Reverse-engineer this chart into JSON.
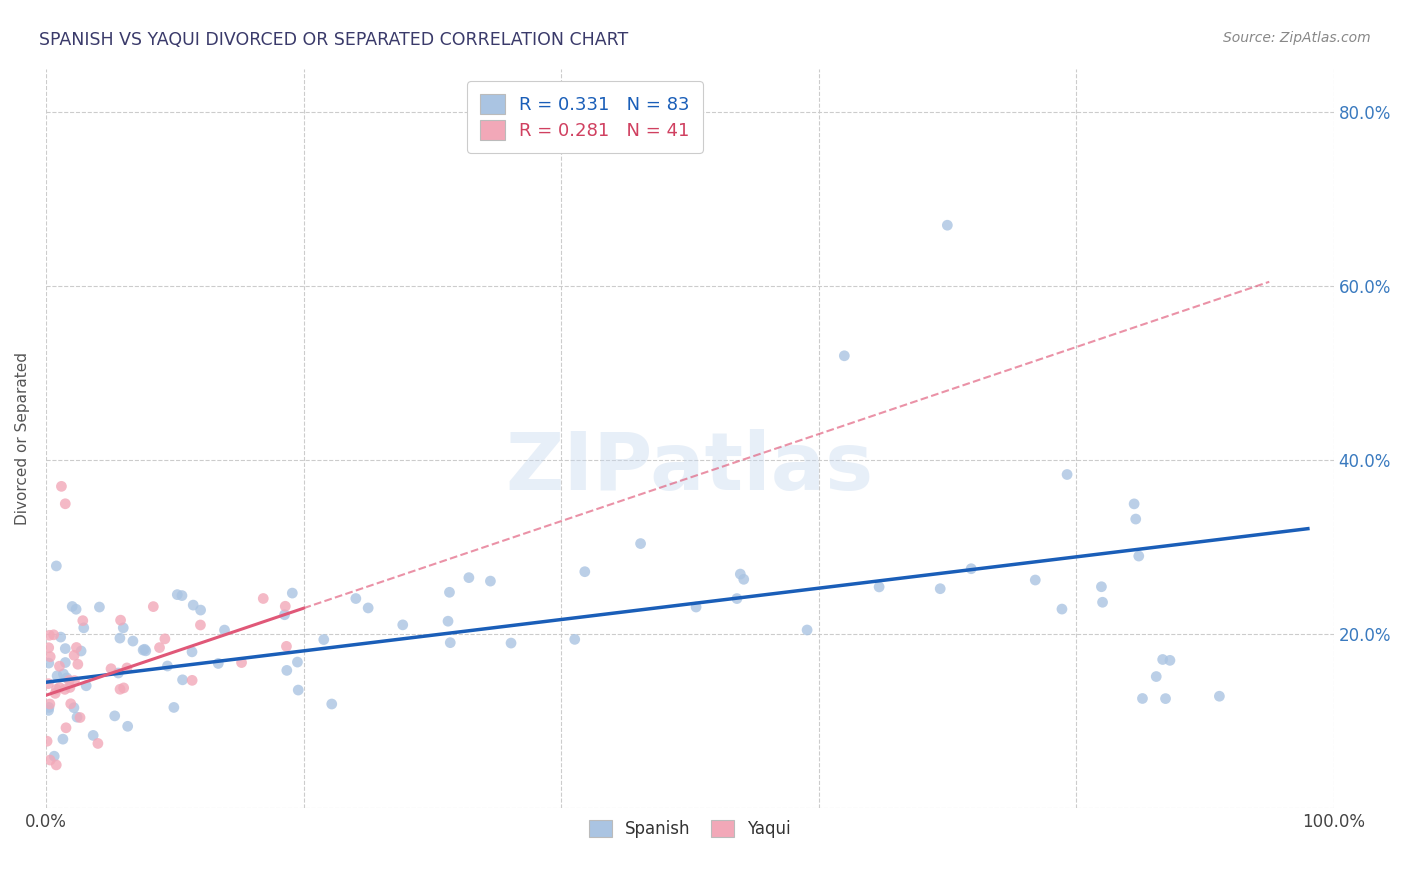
{
  "title": "SPANISH VS YAQUI DIVORCED OR SEPARATED CORRELATION CHART",
  "source_text": "Source: ZipAtlas.com",
  "ylabel": "Divorced or Separated",
  "xlim": [
    0.0,
    1.0
  ],
  "ylim": [
    0.0,
    0.85
  ],
  "xticks": [
    0.0,
    0.2,
    0.4,
    0.6,
    0.8,
    1.0
  ],
  "xticklabels": [
    "0.0%",
    "",
    "",
    "",
    "",
    "100.0%"
  ],
  "yticks": [
    0.0,
    0.2,
    0.4,
    0.6,
    0.8
  ],
  "right_yticklabels": [
    "",
    "20.0%",
    "40.0%",
    "60.0%",
    "80.0%"
  ],
  "grid_color": "#cccccc",
  "background_color": "#ffffff",
  "spanish_color": "#aac4e2",
  "yaqui_color": "#f2a8b8",
  "spanish_line_color": "#1a5eb8",
  "yaqui_line_color": "#e05878",
  "R_spanish": 0.331,
  "N_spanish": 83,
  "R_yaqui": 0.281,
  "N_yaqui": 41,
  "legend_label_spanish": "Spanish",
  "legend_label_yaqui": "Yaqui",
  "watermark": "ZIPatlas",
  "title_color": "#3a3a6a",
  "source_color": "#888888",
  "axis_label_color": "#555555",
  "right_tick_color": "#3a7abf"
}
